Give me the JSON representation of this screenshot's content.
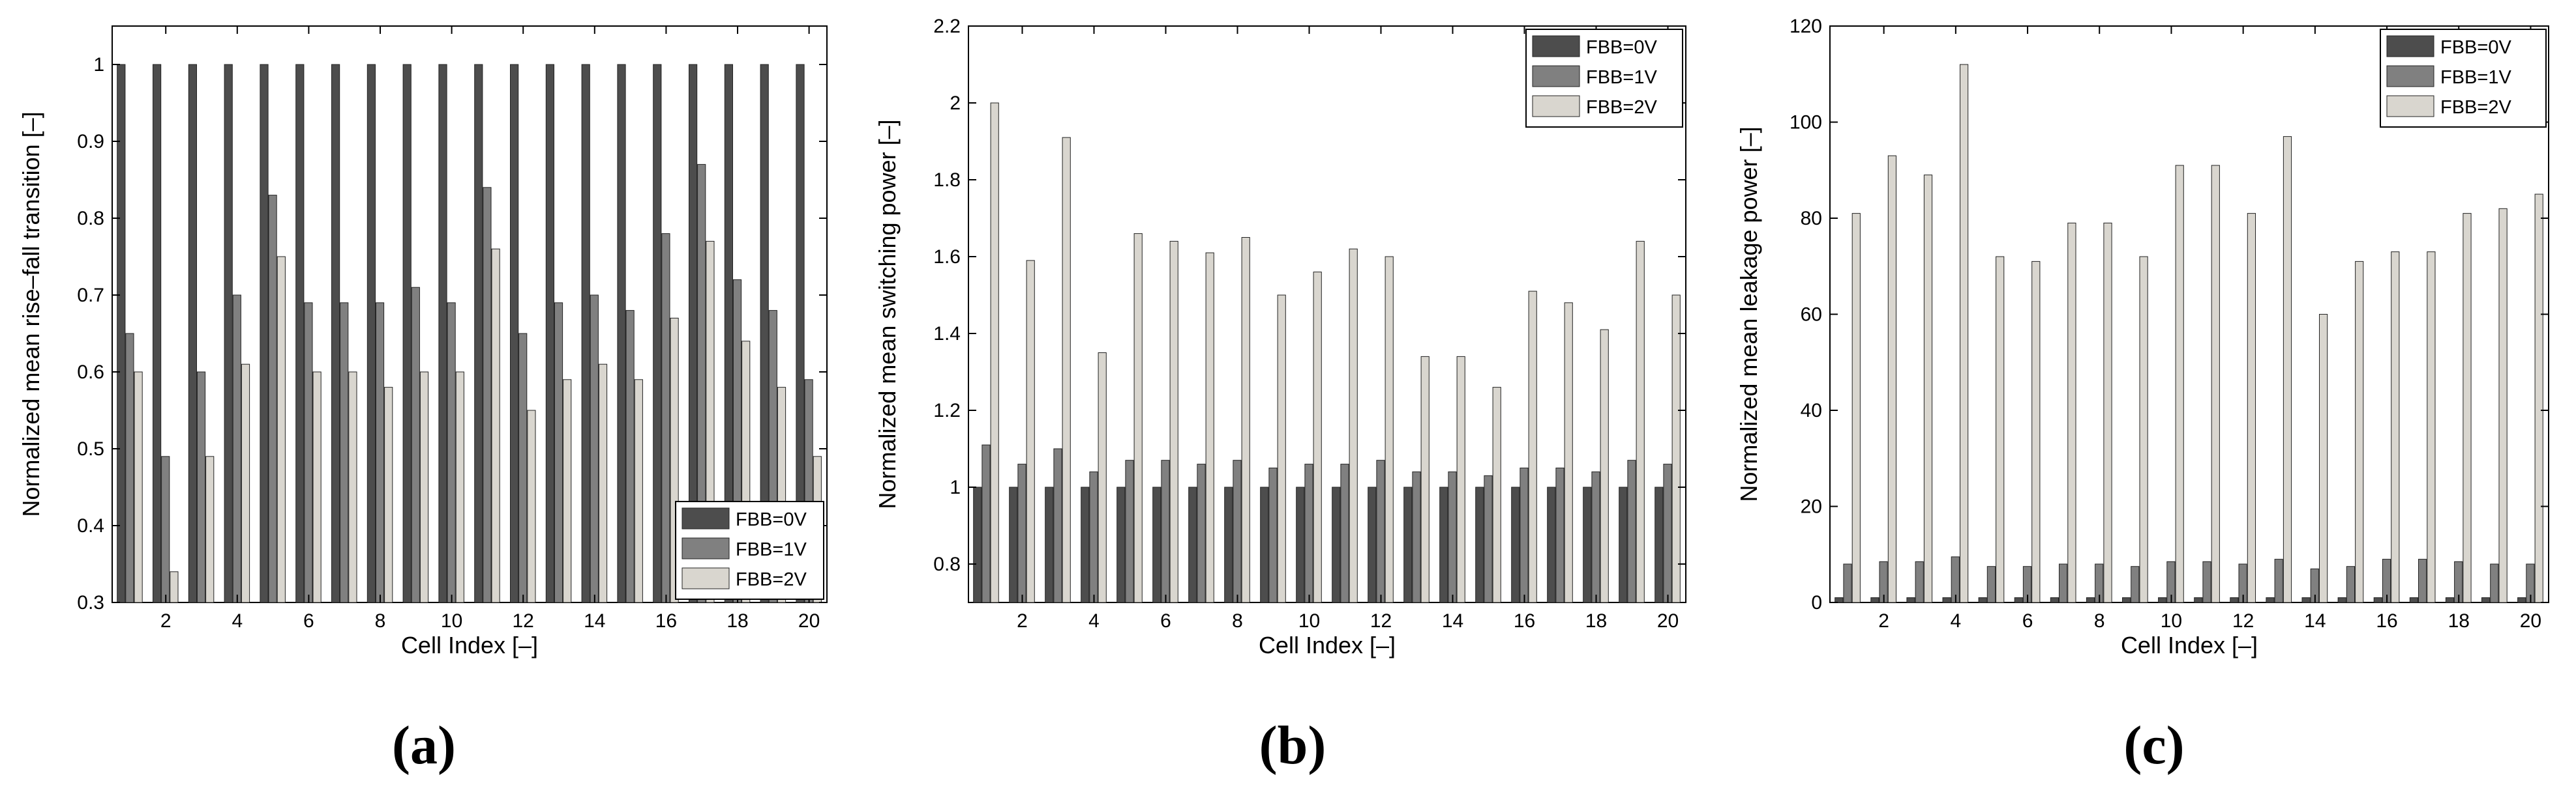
{
  "chart_data": [
    {
      "type": "bar",
      "panel_label": "(a)",
      "xlabel": "Cell Index [–]",
      "ylabel": "Normalized mean rise–fall transition [–]",
      "x": [
        1,
        2,
        3,
        4,
        5,
        6,
        7,
        8,
        9,
        10,
        11,
        12,
        13,
        14,
        15,
        16,
        17,
        18,
        19,
        20
      ],
      "xticks": [
        2,
        4,
        6,
        8,
        10,
        12,
        14,
        16,
        18,
        20
      ],
      "ylim": [
        0.3,
        1.05
      ],
      "yticks": [
        0.3,
        0.4,
        0.5,
        0.6,
        0.7,
        0.8,
        0.9,
        1
      ],
      "legend_position": "bottom-right",
      "series": [
        {
          "name": "FBB=0V",
          "color": "#4d4d4d",
          "values": [
            1,
            1,
            1,
            1,
            1,
            1,
            1,
            1,
            1,
            1,
            1,
            1,
            1,
            1,
            1,
            1,
            1,
            1,
            1,
            1
          ]
        },
        {
          "name": "FBB=1V",
          "color": "#808080",
          "values": [
            0.65,
            0.49,
            0.6,
            0.7,
            0.83,
            0.69,
            0.69,
            0.69,
            0.71,
            0.69,
            0.84,
            0.65,
            0.69,
            0.7,
            0.68,
            0.78,
            0.87,
            0.72,
            0.68,
            0.59
          ]
        },
        {
          "name": "FBB=2V",
          "color": "#d9d6cf",
          "values": [
            0.6,
            0.34,
            0.49,
            0.61,
            0.75,
            0.6,
            0.6,
            0.58,
            0.6,
            0.6,
            0.76,
            0.55,
            0.59,
            0.61,
            0.59,
            0.67,
            0.77,
            0.64,
            0.58,
            0.49
          ]
        }
      ]
    },
    {
      "type": "bar",
      "panel_label": "(b)",
      "xlabel": "Cell Index [–]",
      "ylabel": "Normalized mean switching power [–]",
      "x": [
        1,
        2,
        3,
        4,
        5,
        6,
        7,
        8,
        9,
        10,
        11,
        12,
        13,
        14,
        15,
        16,
        17,
        18,
        19,
        20
      ],
      "xticks": [
        2,
        4,
        6,
        8,
        10,
        12,
        14,
        16,
        18,
        20
      ],
      "ylim": [
        0.7,
        2.2
      ],
      "yticks": [
        0.8,
        1,
        1.2,
        1.4,
        1.6,
        1.8,
        2,
        2.2
      ],
      "legend_position": "top-right",
      "series": [
        {
          "name": "FBB=0V",
          "color": "#4d4d4d",
          "values": [
            1,
            1,
            1,
            1,
            1,
            1,
            1,
            1,
            1,
            1,
            1,
            1,
            1,
            1,
            1,
            1,
            1,
            1,
            1,
            1
          ]
        },
        {
          "name": "FBB=1V",
          "color": "#808080",
          "values": [
            1.11,
            1.06,
            1.1,
            1.04,
            1.07,
            1.07,
            1.06,
            1.07,
            1.05,
            1.06,
            1.06,
            1.07,
            1.04,
            1.04,
            1.03,
            1.05,
            1.05,
            1.04,
            1.07,
            1.06
          ]
        },
        {
          "name": "FBB=2V",
          "color": "#d9d6cf",
          "values": [
            2.0,
            1.59,
            1.91,
            1.35,
            1.66,
            1.64,
            1.61,
            1.65,
            1.5,
            1.56,
            1.62,
            1.6,
            1.34,
            1.34,
            1.26,
            1.51,
            1.48,
            1.41,
            1.64,
            1.5
          ]
        }
      ]
    },
    {
      "type": "bar",
      "panel_label": "(c)",
      "xlabel": "Cell Index [–]",
      "ylabel": "Normalized mean leakage power [–]",
      "x": [
        1,
        2,
        3,
        4,
        5,
        6,
        7,
        8,
        9,
        10,
        11,
        12,
        13,
        14,
        15,
        16,
        17,
        18,
        19,
        20
      ],
      "xticks": [
        2,
        4,
        6,
        8,
        10,
        12,
        14,
        16,
        18,
        20
      ],
      "ylim": [
        0,
        120
      ],
      "yticks": [
        0,
        20,
        40,
        60,
        80,
        100,
        120
      ],
      "legend_position": "top-right",
      "series": [
        {
          "name": "FBB=0V",
          "color": "#4d4d4d",
          "values": [
            1,
            1,
            1,
            1,
            1,
            1,
            1,
            1,
            1,
            1,
            1,
            1,
            1,
            1,
            1,
            1,
            1,
            1,
            1,
            1
          ]
        },
        {
          "name": "FBB=1V",
          "color": "#808080",
          "values": [
            8,
            8.5,
            8.5,
            9.5,
            7.5,
            7.5,
            8,
            8,
            7.5,
            8.5,
            8.5,
            8,
            9,
            7,
            7.5,
            9,
            9,
            8.5,
            8,
            8
          ]
        },
        {
          "name": "FBB=2V",
          "color": "#d9d6cf",
          "values": [
            81,
            93,
            89,
            112,
            72,
            71,
            79,
            79,
            72,
            91,
            91,
            81,
            97,
            60,
            71,
            73,
            73,
            81,
            82,
            85
          ]
        }
      ]
    }
  ]
}
